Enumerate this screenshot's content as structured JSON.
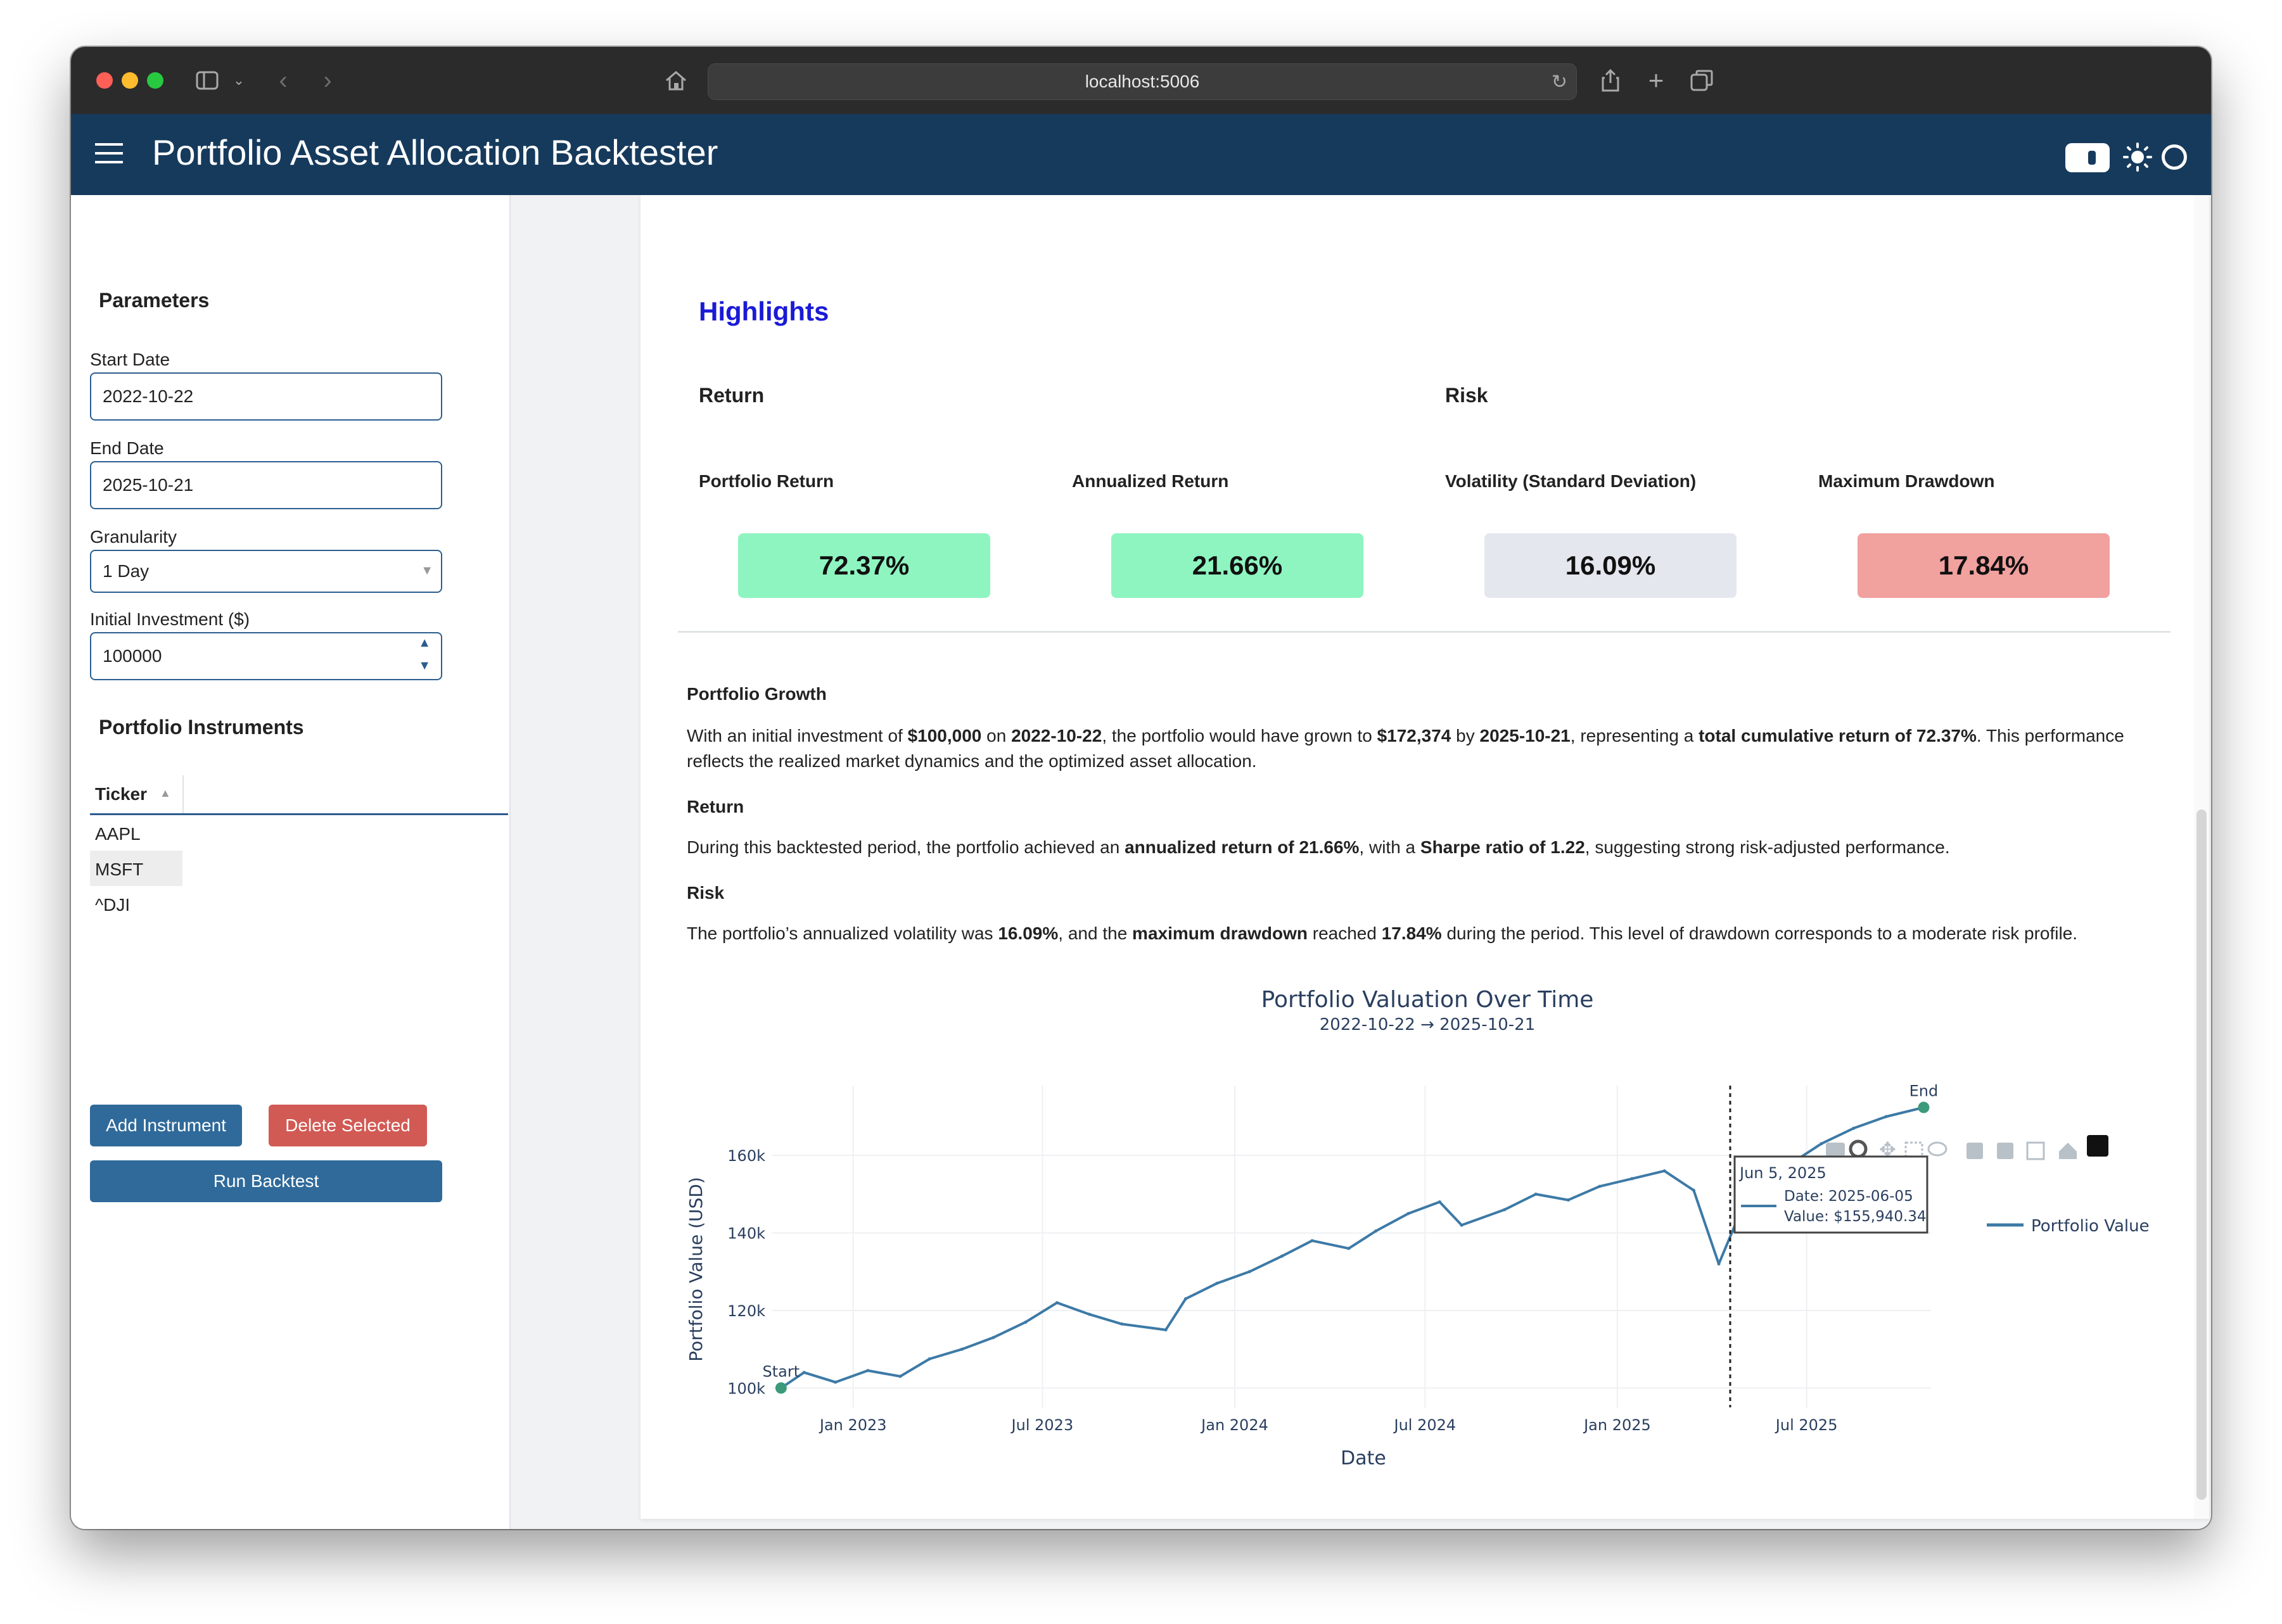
{
  "browser": {
    "url": "localhost:5006"
  },
  "app": {
    "title": "Portfolio Asset Allocation Backtester"
  },
  "sidebar": {
    "params_title": "Parameters",
    "start_date_label": "Start Date",
    "start_date_value": "2022-10-22",
    "end_date_label": "End Date",
    "end_date_value": "2025-10-21",
    "granularity_label": "Granularity",
    "granularity_value": "1 Day",
    "initial_label": "Initial Investment ($)",
    "initial_value": "100000",
    "instruments_title": "Portfolio Instruments",
    "ticker_header": "Ticker",
    "tickers": [
      "AAPL",
      "MSFT",
      "^DJI"
    ],
    "add_button": "Add Instrument",
    "delete_button": "Delete Selected",
    "run_button": "Run Backtest"
  },
  "highlights": {
    "title": "Highlights",
    "return_heading": "Return",
    "risk_heading": "Risk",
    "metrics": [
      {
        "label": "Portfolio Return",
        "value": "72.37%",
        "color": "#8ef5c0"
      },
      {
        "label": "Annualized Return",
        "value": "21.66%",
        "color": "#8ef5c0"
      },
      {
        "label": "Volatility (Standard Deviation)",
        "value": "16.09%",
        "color": "#e4e7ee"
      },
      {
        "label": "Maximum Drawdown",
        "value": "17.84%",
        "color": "#f1a19e"
      }
    ]
  },
  "summary": {
    "growth_heading": "Portfolio Growth",
    "growth_text": [
      "With an initial investment of ",
      "$100,000",
      " on ",
      "2022-10-22",
      ", the portfolio would have grown to ",
      "$172,374",
      " by ",
      "2025-10-21",
      ", representing a ",
      "total cumulative return of 72.37%",
      ". This performance reflects the realized market dynamics and the optimized asset allocation."
    ],
    "return_heading": "Return",
    "return_text": [
      "During this backtested period, the portfolio achieved an ",
      "annualized return of 21.66%",
      ", with a ",
      "Sharpe ratio of 1.22",
      ", suggesting strong risk-adjusted performance."
    ],
    "risk_heading": "Risk",
    "risk_text": [
      "The portfolio’s annualized volatility was ",
      "16.09%",
      ", and the ",
      "maximum drawdown",
      " reached ",
      "17.84%",
      " during the period. This level of drawdown corresponds to a moderate risk profile."
    ]
  },
  "chart_data": {
    "type": "line",
    "title": "Portfolio Valuation Over Time",
    "subtitle": "2022-10-22 → 2025-10-21",
    "xlabel": "Date",
    "ylabel": "Portfolio Value (USD)",
    "ylim": [
      95000,
      178000
    ],
    "y_ticks": [
      100000,
      120000,
      140000,
      160000
    ],
    "y_tick_labels": [
      "100k",
      "120k",
      "140k",
      "160k"
    ],
    "x_tick_labels": [
      "Jan 2023",
      "Jul 2023",
      "Jan 2024",
      "Jul 2024",
      "Jan 2025",
      "Jul 2025"
    ],
    "x_ticks": [
      "2023-01-01",
      "2023-07-01",
      "2024-01-01",
      "2024-07-01",
      "2025-01-01",
      "2025-07-01"
    ],
    "xlim": [
      "2022-10-15",
      "2025-10-28"
    ],
    "series": [
      {
        "name": "Portfolio Value",
        "color": "#3d7aa6",
        "x": [
          "2022-10-24",
          "2022-11-15",
          "2022-12-15",
          "2023-01-15",
          "2023-02-15",
          "2023-03-15",
          "2023-04-15",
          "2023-05-15",
          "2023-06-15",
          "2023-07-15",
          "2023-08-15",
          "2023-09-15",
          "2023-10-27",
          "2023-11-15",
          "2023-12-15",
          "2024-01-15",
          "2024-02-15",
          "2024-03-15",
          "2024-04-19",
          "2024-05-15",
          "2024-06-15",
          "2024-07-15",
          "2024-08-05",
          "2024-09-15",
          "2024-10-15",
          "2024-11-15",
          "2024-12-15",
          "2025-01-15",
          "2025-02-15",
          "2025-03-15",
          "2025-04-08",
          "2025-04-25",
          "2025-05-15",
          "2025-06-05",
          "2025-07-15",
          "2025-08-15",
          "2025-09-15",
          "2025-10-21"
        ],
        "values": [
          100000,
          104000,
          101500,
          104500,
          103000,
          107500,
          110000,
          113000,
          117000,
          122000,
          119000,
          116500,
          115000,
          123000,
          127000,
          130000,
          134000,
          138000,
          136000,
          140500,
          145000,
          148000,
          142000,
          146000,
          150000,
          148500,
          152000,
          154000,
          156000,
          151000,
          132000,
          143000,
          151000,
          155940,
          163000,
          167000,
          170000,
          172374
        ]
      }
    ],
    "annotations": [
      {
        "text": "Start",
        "x": "2022-10-24",
        "y": 100000
      },
      {
        "text": "End",
        "x": "2025-10-21",
        "y": 172374
      }
    ],
    "hover": {
      "x": "2025-06-05",
      "header": "Jun 5, 2025",
      "line1": "Date: 2025-06-05",
      "line2": "Value: $155,940.34"
    },
    "legend": "top-right",
    "grid": true
  }
}
